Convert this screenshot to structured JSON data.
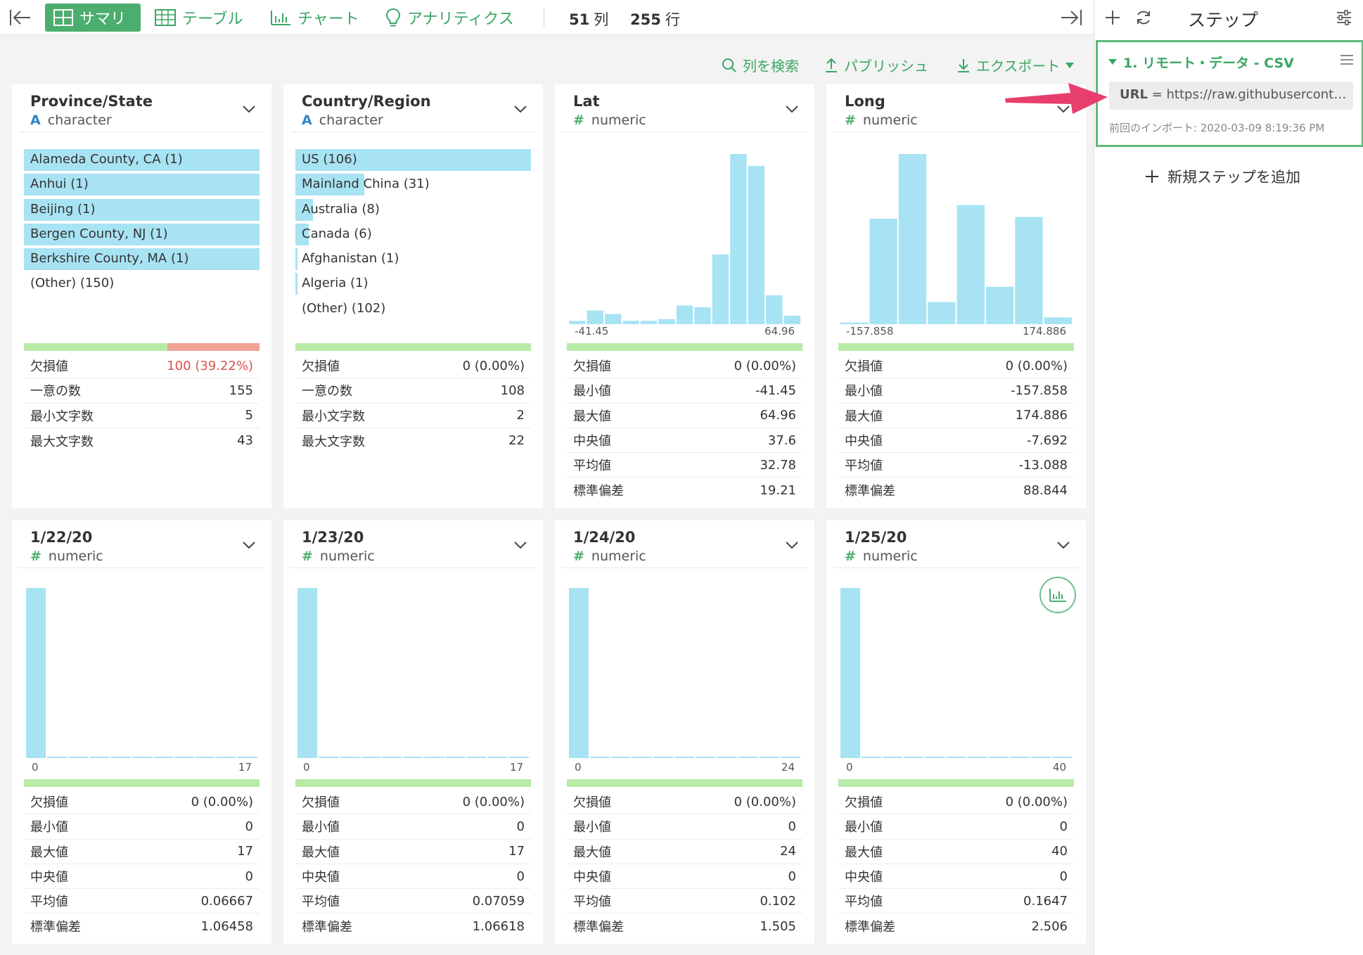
{
  "toolbar": {
    "tabs": [
      {
        "label": "サマリ"
      },
      {
        "label": "テーブル"
      },
      {
        "label": "チャート"
      },
      {
        "label": "アナリティクス"
      }
    ],
    "columns_count": "51",
    "columns_unit": "列",
    "rows_count": "255",
    "rows_unit": "行"
  },
  "subbar": {
    "search_label": "列を検索",
    "publish_label": "パブリッシュ",
    "export_label": "エクスポート"
  },
  "colors": {
    "accent": "#4cae6e",
    "bar": "#a8e3f3",
    "valid": "#b8eaa8",
    "missing": "#f0a392",
    "warn": "#d9534f",
    "arrow": "#e83e6c"
  },
  "cards": [
    {
      "title": "Province/State",
      "type_mark": "A",
      "type": "character",
      "values": [
        {
          "label": "Alameda County, CA (1)",
          "fraction": 1.0
        },
        {
          "label": "Anhui (1)",
          "fraction": 1.0
        },
        {
          "label": "Beijing (1)",
          "fraction": 1.0
        },
        {
          "label": "Bergen County, NJ (1)",
          "fraction": 1.0
        },
        {
          "label": "Berkshire County, MA (1)",
          "fraction": 1.0
        },
        {
          "label": "(Other) (150)",
          "fraction": 0
        }
      ],
      "missing_fraction": 0.3922,
      "stats": [
        {
          "label": "欠損値",
          "value": "100 (39.22%)",
          "warn": true
        },
        {
          "label": "一意の数",
          "value": "155"
        },
        {
          "label": "最小文字数",
          "value": "5"
        },
        {
          "label": "最大文字数",
          "value": "43"
        }
      ]
    },
    {
      "title": "Country/Region",
      "type_mark": "A",
      "type": "character",
      "values": [
        {
          "label": "US (106)",
          "fraction": 1.0
        },
        {
          "label": "Mainland China (31)",
          "fraction": 0.292
        },
        {
          "label": "Australia (8)",
          "fraction": 0.075
        },
        {
          "label": "Canada (6)",
          "fraction": 0.057
        },
        {
          "label": "Afghanistan (1)",
          "fraction": 0.009
        },
        {
          "label": "Algeria (1)",
          "fraction": 0.009
        },
        {
          "label": "(Other) (102)",
          "fraction": 0
        }
      ],
      "missing_fraction": 0,
      "stats": [
        {
          "label": "欠損値",
          "value": "0 (0.00%)"
        },
        {
          "label": "一意の数",
          "value": "108"
        },
        {
          "label": "最小文字数",
          "value": "2"
        },
        {
          "label": "最大文字数",
          "value": "22"
        }
      ]
    },
    {
      "title": "Lat",
      "type_mark": "#",
      "type": "numeric",
      "axis_min": "-41.45",
      "axis_max": "64.96",
      "histogram": [
        0.02,
        0.08,
        0.06,
        0.02,
        0.02,
        0.03,
        0.11,
        0.1,
        0.41,
        1.0,
        0.93,
        0.17,
        0.05
      ],
      "missing_fraction": 0,
      "stats": [
        {
          "label": "欠損値",
          "value": "0 (0.00%)"
        },
        {
          "label": "最小値",
          "value": "-41.45"
        },
        {
          "label": "最大値",
          "value": "64.96"
        },
        {
          "label": "中央値",
          "value": "37.6"
        },
        {
          "label": "平均値",
          "value": "32.78"
        },
        {
          "label": "標準偏差",
          "value": "19.21"
        }
      ]
    },
    {
      "title": "Long",
      "type_mark": "#",
      "type": "numeric",
      "axis_min": "-157.858",
      "axis_max": "174.886",
      "histogram": [
        0.01,
        0.62,
        1.0,
        0.13,
        0.7,
        0.22,
        0.63,
        0.04
      ],
      "missing_fraction": 0,
      "stats": [
        {
          "label": "欠損値",
          "value": "0 (0.00%)"
        },
        {
          "label": "最小値",
          "value": "-157.858"
        },
        {
          "label": "最大値",
          "value": "174.886"
        },
        {
          "label": "中央値",
          "value": "-7.692"
        },
        {
          "label": "平均値",
          "value": "-13.088"
        },
        {
          "label": "標準偏差",
          "value": "88.844"
        }
      ]
    },
    {
      "title": "1/22/20",
      "type_mark": "#",
      "type": "numeric",
      "axis_min": "0",
      "axis_max": "17",
      "histogram": [
        1.0,
        0.004,
        0.004,
        0.004,
        0.004,
        0.004,
        0.004,
        0.004,
        0.004,
        0.004,
        0.004
      ],
      "missing_fraction": 0,
      "stats": [
        {
          "label": "欠損値",
          "value": "0 (0.00%)"
        },
        {
          "label": "最小値",
          "value": "0"
        },
        {
          "label": "最大値",
          "value": "17"
        },
        {
          "label": "中央値",
          "value": "0"
        },
        {
          "label": "平均値",
          "value": "0.06667"
        },
        {
          "label": "標準偏差",
          "value": "1.06458"
        }
      ]
    },
    {
      "title": "1/23/20",
      "type_mark": "#",
      "type": "numeric",
      "axis_min": "0",
      "axis_max": "17",
      "histogram": [
        1.0,
        0.004,
        0.004,
        0.004,
        0.004,
        0.004,
        0.004,
        0.004,
        0.004,
        0.004,
        0.004
      ],
      "missing_fraction": 0,
      "stats": [
        {
          "label": "欠損値",
          "value": "0 (0.00%)"
        },
        {
          "label": "最小値",
          "value": "0"
        },
        {
          "label": "最大値",
          "value": "17"
        },
        {
          "label": "中央値",
          "value": "0"
        },
        {
          "label": "平均値",
          "value": "0.07059"
        },
        {
          "label": "標準偏差",
          "value": "1.06618"
        }
      ]
    },
    {
      "title": "1/24/20",
      "type_mark": "#",
      "type": "numeric",
      "axis_min": "0",
      "axis_max": "24",
      "histogram": [
        1.0,
        0.004,
        0.004,
        0.004,
        0.004,
        0.004,
        0.004,
        0.004,
        0.004,
        0.004,
        0.004
      ],
      "missing_fraction": 0,
      "stats": [
        {
          "label": "欠損値",
          "value": "0 (0.00%)"
        },
        {
          "label": "最小値",
          "value": "0"
        },
        {
          "label": "最大値",
          "value": "24"
        },
        {
          "label": "中央値",
          "value": "0"
        },
        {
          "label": "平均値",
          "value": "0.102"
        },
        {
          "label": "標準偏差",
          "value": "1.505"
        }
      ]
    },
    {
      "title": "1/25/20",
      "type_mark": "#",
      "type": "numeric",
      "axis_min": "0",
      "axis_max": "40",
      "histogram": [
        1.0,
        0.004,
        0.004,
        0.004,
        0.004,
        0.004,
        0.004,
        0.004,
        0.004,
        0.004,
        0.004
      ],
      "missing_fraction": 0,
      "stats": [
        {
          "label": "欠損値",
          "value": "0 (0.00%)"
        },
        {
          "label": "最小値",
          "value": "0"
        },
        {
          "label": "最大値",
          "value": "40"
        },
        {
          "label": "中央値",
          "value": "0"
        },
        {
          "label": "平均値",
          "value": "0.1647"
        },
        {
          "label": "標準偏差",
          "value": "2.506"
        }
      ]
    }
  ],
  "panel": {
    "title": "ステップ",
    "step": {
      "title": "1. リモート・データ - CSV",
      "param_key": "URL",
      "param_eq": "=",
      "param_value": "https://raw.githubuserconte...",
      "meta": "前回のインポート: 2020-03-09 8:19:36 PM"
    },
    "add_step_label": "新規ステップを追加"
  }
}
